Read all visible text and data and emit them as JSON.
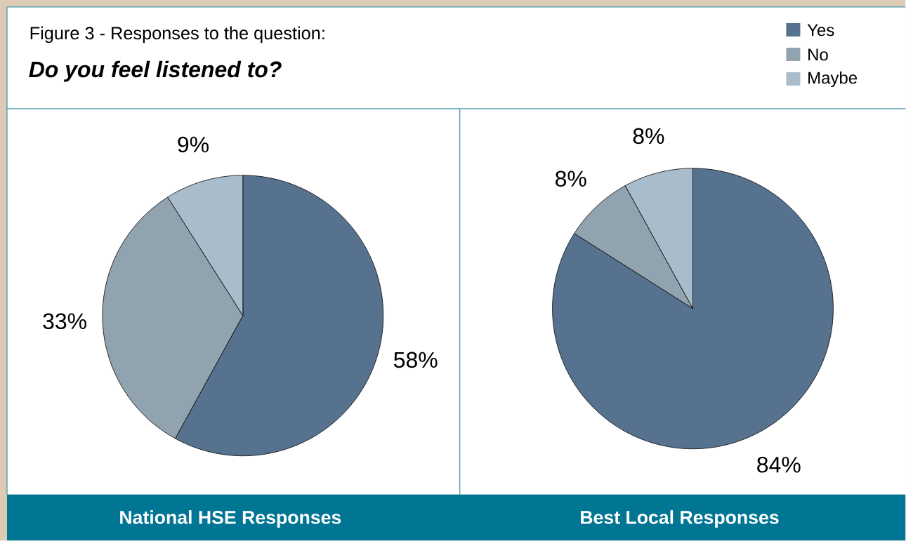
{
  "chart_data": [
    {
      "type": "pie",
      "title": "Figure 3 - Responses to the question:",
      "subtitle": "Do you feel listened to?",
      "xlabel": "National HSE  Responses",
      "categories": [
        null,
        null,
        null
      ],
      "values": [
        58,
        33,
        9
      ],
      "value_labels": [
        "58%",
        "33%",
        "9%"
      ],
      "colors": [
        "#56728f",
        "#91a3af",
        "#a9bccb"
      ]
    },
    {
      "type": "pie",
      "xlabel": "Best Local Responses",
      "categories": [
        "Yes",
        "No",
        "Maybe"
      ],
      "values": [
        84,
        8,
        8
      ],
      "value_labels": [
        "84%",
        "8%",
        "8%"
      ],
      "colors": [
        "#56728f",
        "#91a3af",
        "#a9bccb"
      ],
      "legend": "top right"
    }
  ]
}
